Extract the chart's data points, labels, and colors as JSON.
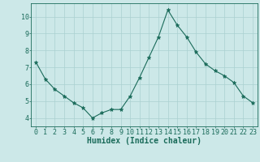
{
  "x": [
    0,
    1,
    2,
    3,
    4,
    5,
    6,
    7,
    8,
    9,
    10,
    11,
    12,
    13,
    14,
    15,
    16,
    17,
    18,
    19,
    20,
    21,
    22,
    23
  ],
  "y": [
    7.3,
    6.3,
    5.7,
    5.3,
    4.9,
    4.6,
    4.0,
    4.3,
    4.5,
    4.5,
    5.3,
    6.4,
    7.6,
    8.8,
    10.4,
    9.5,
    8.8,
    7.9,
    7.2,
    6.8,
    6.5,
    6.1,
    5.3,
    4.9
  ],
  "xlabel": "Humidex (Indice chaleur)",
  "xlim": [
    -0.5,
    23.5
  ],
  "ylim": [
    3.5,
    10.8
  ],
  "yticks": [
    4,
    5,
    6,
    7,
    8,
    9,
    10
  ],
  "xticks": [
    0,
    1,
    2,
    3,
    4,
    5,
    6,
    7,
    8,
    9,
    10,
    11,
    12,
    13,
    14,
    15,
    16,
    17,
    18,
    19,
    20,
    21,
    22,
    23
  ],
  "line_color": "#1a6b5a",
  "marker": "*",
  "marker_size": 3.5,
  "bg_color": "#cce8e8",
  "grid_color": "#aad0d0",
  "axis_color": "#1a6b5a",
  "xlabel_fontsize": 7,
  "tick_fontsize": 6
}
